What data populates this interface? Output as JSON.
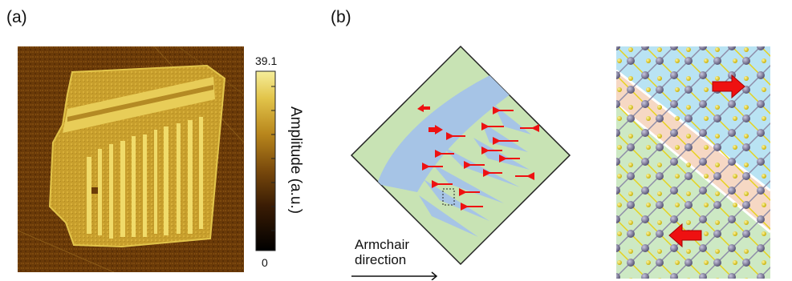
{
  "panels": {
    "a_label": "(a)",
    "b_label": "(b)"
  },
  "colorbar": {
    "max_label": "39.1",
    "min_label": "0",
    "title": "Amplitude (a.u.)",
    "colors": [
      "#000000",
      "#3a1c04",
      "#7a4a0c",
      "#b8861c",
      "#e2c44a",
      "#f6ee9a"
    ]
  },
  "schematic": {
    "direction_label_line1": "Armchair",
    "direction_label_line2": "direction",
    "background_color": "#c8e3b4",
    "domain_color": "#a6c4e6",
    "arrow_color": "#ee1111"
  },
  "lattice": {
    "region_colors": [
      "#b9e3f3",
      "#f6d8c4",
      "#cde9c4"
    ],
    "atom_large_color": "#6f6c8a",
    "atom_small_color": "#e6d21c"
  }
}
